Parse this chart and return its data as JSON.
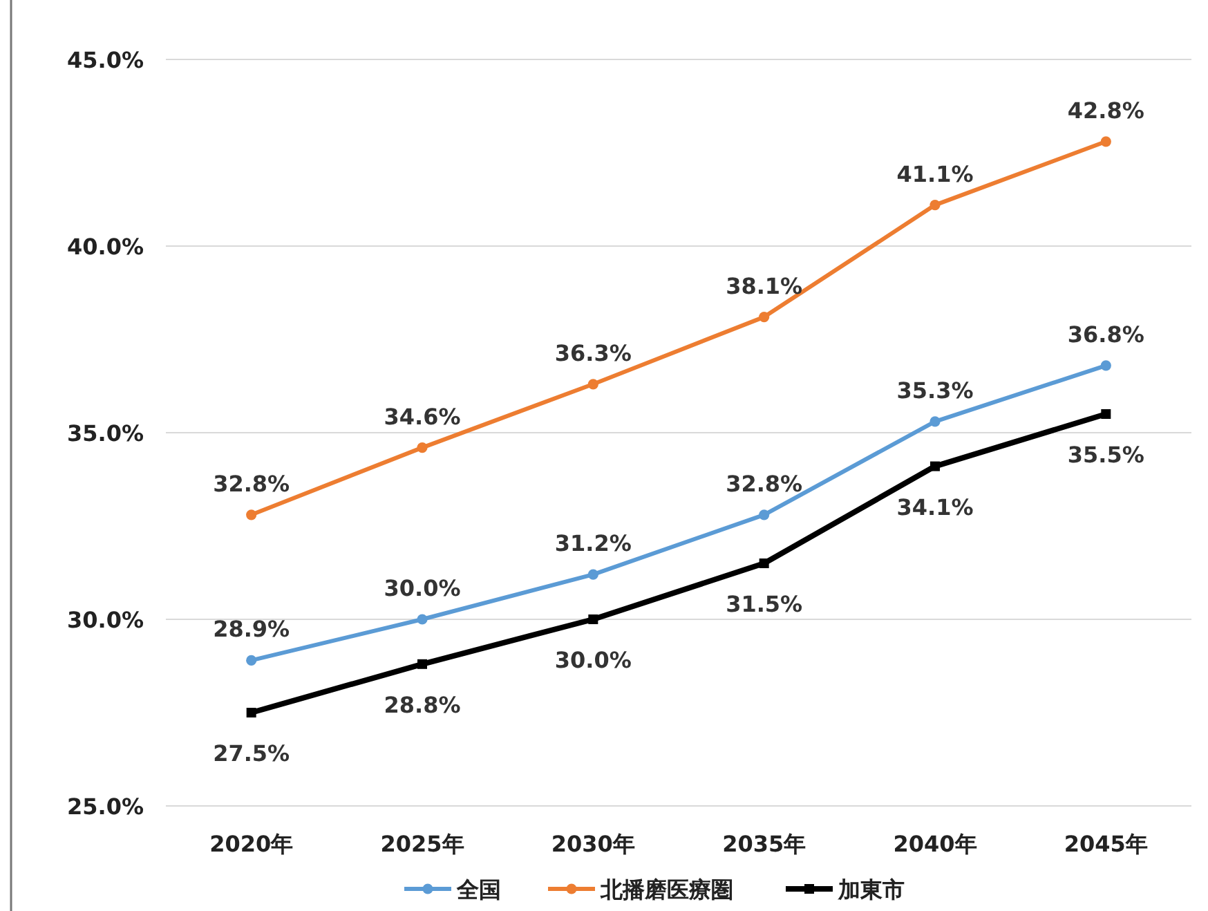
{
  "chart_data": {
    "type": "line",
    "categories": [
      "2020年",
      "2025年",
      "2030年",
      "2035年",
      "2040年",
      "2045年"
    ],
    "series": [
      {
        "name": "全国",
        "color": "#5b9bd5",
        "marker": "circle",
        "values": [
          28.9,
          30.0,
          31.2,
          32.8,
          35.3,
          36.8
        ],
        "value_labels": [
          "28.9%",
          "30.0%",
          "31.2%",
          "32.8%",
          "35.3%",
          "36.8%"
        ]
      },
      {
        "name": "北播磨医療圏",
        "color": "#ed7d31",
        "marker": "circle",
        "values": [
          32.8,
          34.6,
          36.3,
          38.1,
          41.1,
          42.8
        ],
        "value_labels": [
          "32.8%",
          "34.6%",
          "36.3%",
          "38.1%",
          "41.1%",
          "42.8%"
        ]
      },
      {
        "name": "加東市",
        "color": "#000000",
        "marker": "square",
        "values": [
          27.5,
          28.8,
          30.0,
          31.5,
          34.1,
          35.5
        ],
        "value_labels": [
          "27.5%",
          "28.8%",
          "30.0%",
          "31.5%",
          "34.1%",
          "35.5%"
        ]
      }
    ],
    "ylim": [
      25,
      45
    ],
    "yticks": [
      {
        "value": 25,
        "label": "25.0%"
      },
      {
        "value": 30,
        "label": "30.0%"
      },
      {
        "value": 35,
        "label": "35.0%"
      },
      {
        "value": 40,
        "label": "40.0%"
      },
      {
        "value": 45,
        "label": "45.0%"
      }
    ],
    "grid": "y",
    "legend": "bottom"
  }
}
